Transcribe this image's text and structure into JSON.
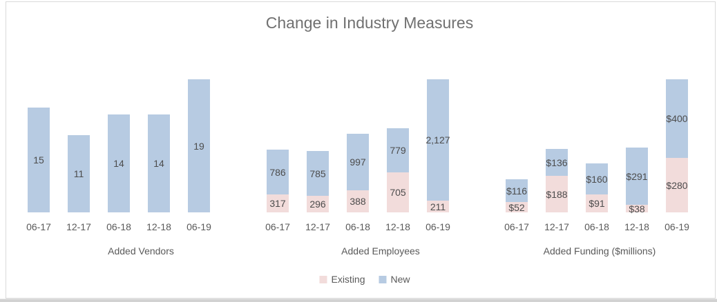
{
  "title": "Change in Industry Measures",
  "colors": {
    "existing": "#f2dcdb",
    "new": "#b7cbe2",
    "data_label": "#4c4c4c",
    "axis_text": "#595959",
    "title_text": "#707070",
    "frame_border": "#d9d9d9"
  },
  "legend": [
    {
      "label": "Existing",
      "color": "#f2dcdb"
    },
    {
      "label": "New",
      "color": "#b7cbe2"
    }
  ],
  "chart_data": [
    {
      "type": "bar",
      "axis_title": "Added Vendors",
      "categories": [
        "06-17",
        "12-17",
        "06-18",
        "12-18",
        "06-19"
      ],
      "series": [
        {
          "name": "New",
          "color_key": "new",
          "values": [
            15,
            11,
            14,
            14,
            19
          ],
          "labels": [
            "15",
            "11",
            "14",
            "14",
            "19"
          ]
        }
      ]
    },
    {
      "type": "stacked-bar",
      "axis_title": "Added Employees",
      "categories": [
        "06-17",
        "12-17",
        "06-18",
        "12-18",
        "06-19"
      ],
      "series": [
        {
          "name": "Existing",
          "color_key": "existing",
          "values": [
            317,
            296,
            388,
            705,
            211
          ],
          "labels": [
            "317",
            "296",
            "388",
            "705",
            "211"
          ]
        },
        {
          "name": "New",
          "color_key": "new",
          "values": [
            786,
            785,
            997,
            779,
            2127
          ],
          "labels": [
            "786",
            "785",
            "997",
            "779",
            "2,127"
          ]
        }
      ]
    },
    {
      "type": "stacked-bar",
      "axis_title": "Added Funding ($millions)",
      "categories": [
        "06-17",
        "12-17",
        "06-18",
        "12-18",
        "06-19"
      ],
      "series": [
        {
          "name": "Existing",
          "color_key": "existing",
          "values": [
            52,
            188,
            91,
            38,
            280
          ],
          "labels": [
            "$52",
            "$188",
            "$91",
            "$38",
            "$280"
          ]
        },
        {
          "name": "New",
          "color_key": "new",
          "values": [
            116,
            136,
            160,
            291,
            400
          ],
          "labels": [
            "$116",
            "$136",
            "$160",
            "$291",
            "$400"
          ]
        }
      ]
    }
  ]
}
